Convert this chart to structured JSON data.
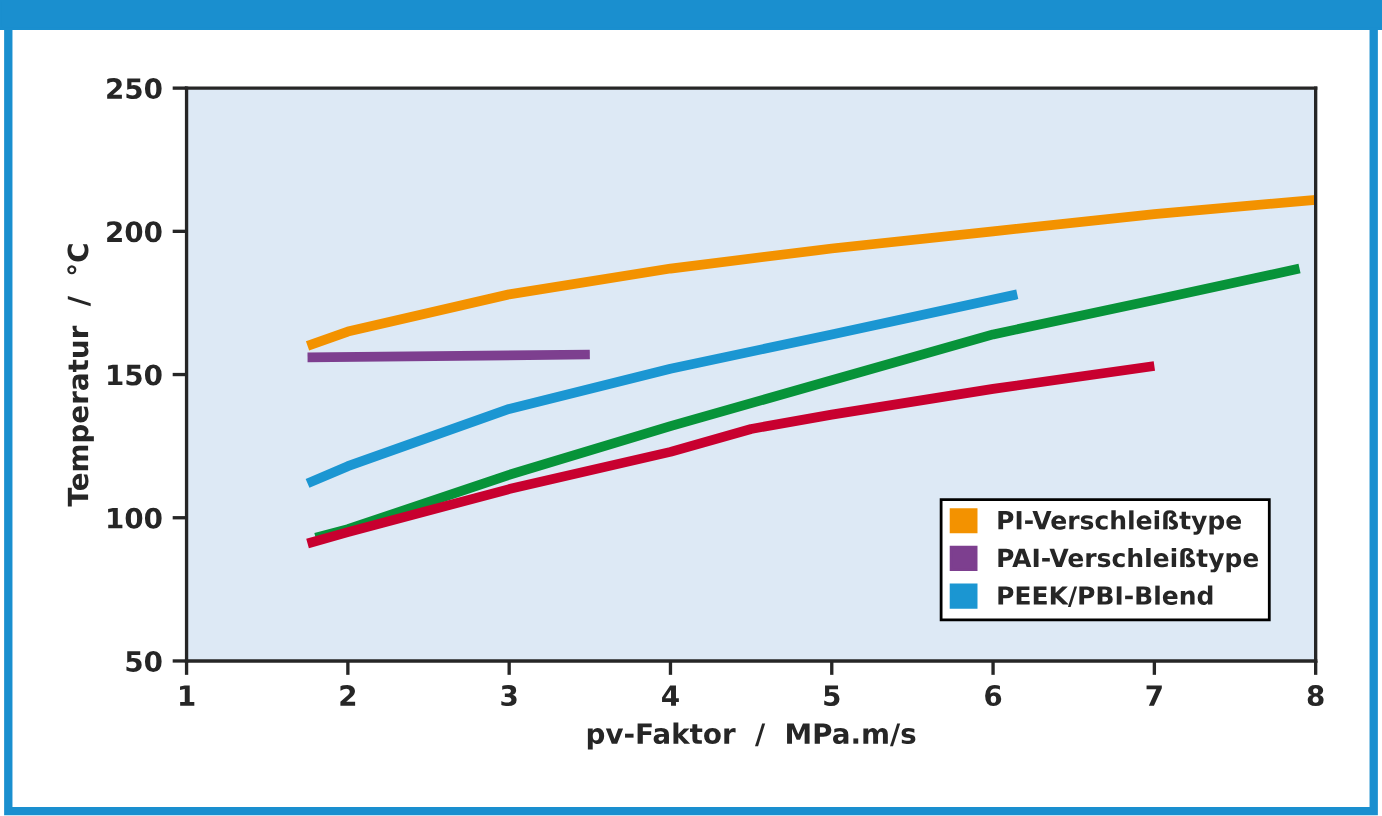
{
  "chart_data": {
    "type": "line",
    "xlabel": "pv-Faktor  /  MPa.m/s",
    "ylabel": "Temperatur  /  °C",
    "xlim": [
      1,
      8
    ],
    "xticks": [
      1,
      2,
      3,
      4,
      5,
      6,
      7,
      8
    ],
    "ylim": [
      50,
      250
    ],
    "yticks": [
      50,
      100,
      150,
      200,
      250
    ],
    "grid": false,
    "legend": "bottom right",
    "marker": "none",
    "line_style": "solid",
    "series": [
      {
        "name": "PI-Verschleißtype",
        "color": "#f39200",
        "x": [
          1.75,
          2,
          3,
          4,
          5,
          6,
          7,
          8
        ],
        "values": [
          160,
          165,
          178,
          187,
          194,
          200,
          206,
          211
        ]
      },
      {
        "name": "PAI-Verschleißtype",
        "color": "#7d3f8f",
        "x": [
          1.75,
          3.5
        ],
        "values": [
          156,
          157
        ]
      },
      {
        "name": "PEEK/PBI-Blend",
        "color": "#1b96d2",
        "x": [
          1.75,
          2,
          3,
          4,
          5,
          6.15
        ],
        "values": [
          112,
          118,
          138,
          152,
          164,
          178
        ]
      },
      {
        "color": "#079339",
        "x": [
          1.8,
          2,
          3,
          4,
          5,
          6,
          7,
          7.9
        ],
        "values": [
          93,
          96,
          115,
          132,
          148,
          164,
          176,
          187
        ]
      },
      {
        "color": "#c8002f",
        "x": [
          1.75,
          2,
          3,
          4,
          4.5,
          5,
          6,
          7
        ],
        "values": [
          91,
          95,
          110,
          123,
          131,
          136,
          145,
          153
        ]
      }
    ]
  }
}
